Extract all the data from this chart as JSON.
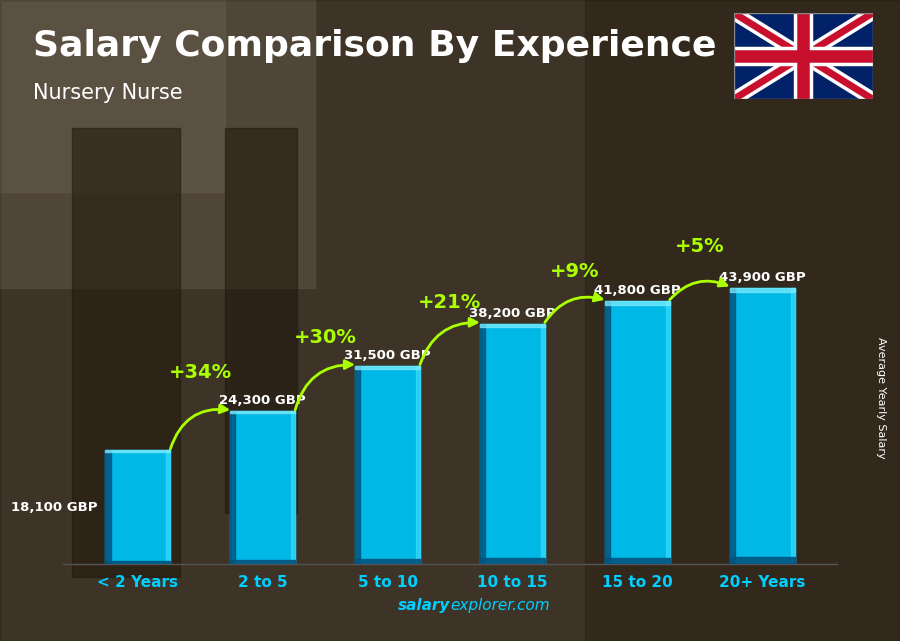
{
  "title": "Salary Comparison By Experience",
  "subtitle": "Nursery Nurse",
  "categories": [
    "< 2 Years",
    "2 to 5",
    "5 to 10",
    "10 to 15",
    "15 to 20",
    "20+ Years"
  ],
  "values": [
    18100,
    24300,
    31500,
    38200,
    41800,
    43900
  ],
  "salary_labels": [
    "18,100 GBP",
    "24,300 GBP",
    "31,500 GBP",
    "38,200 GBP",
    "41,800 GBP",
    "43,900 GBP"
  ],
  "pct_labels": [
    "+34%",
    "+30%",
    "+21%",
    "+9%",
    "+5%"
  ],
  "bar_color_main": "#00b8e6",
  "bar_color_light": "#00d4ff",
  "bar_color_dark": "#0077aa",
  "bar_color_darker": "#005580",
  "pct_color": "#aaff00",
  "text_color": "#ffffff",
  "watermark_color": "#00cfff",
  "side_label": "Average Yearly Salary",
  "watermark": "salaryexplorer.com",
  "ylim": [
    0,
    55000
  ],
  "bg_colors": [
    "#5a4a3a",
    "#3a3020",
    "#6a5040",
    "#4a3828",
    "#7a6050"
  ],
  "title_fontsize": 26,
  "subtitle_fontsize": 15,
  "label_fontsize": 9.5,
  "pct_fontsize": 14,
  "xtick_fontsize": 11
}
